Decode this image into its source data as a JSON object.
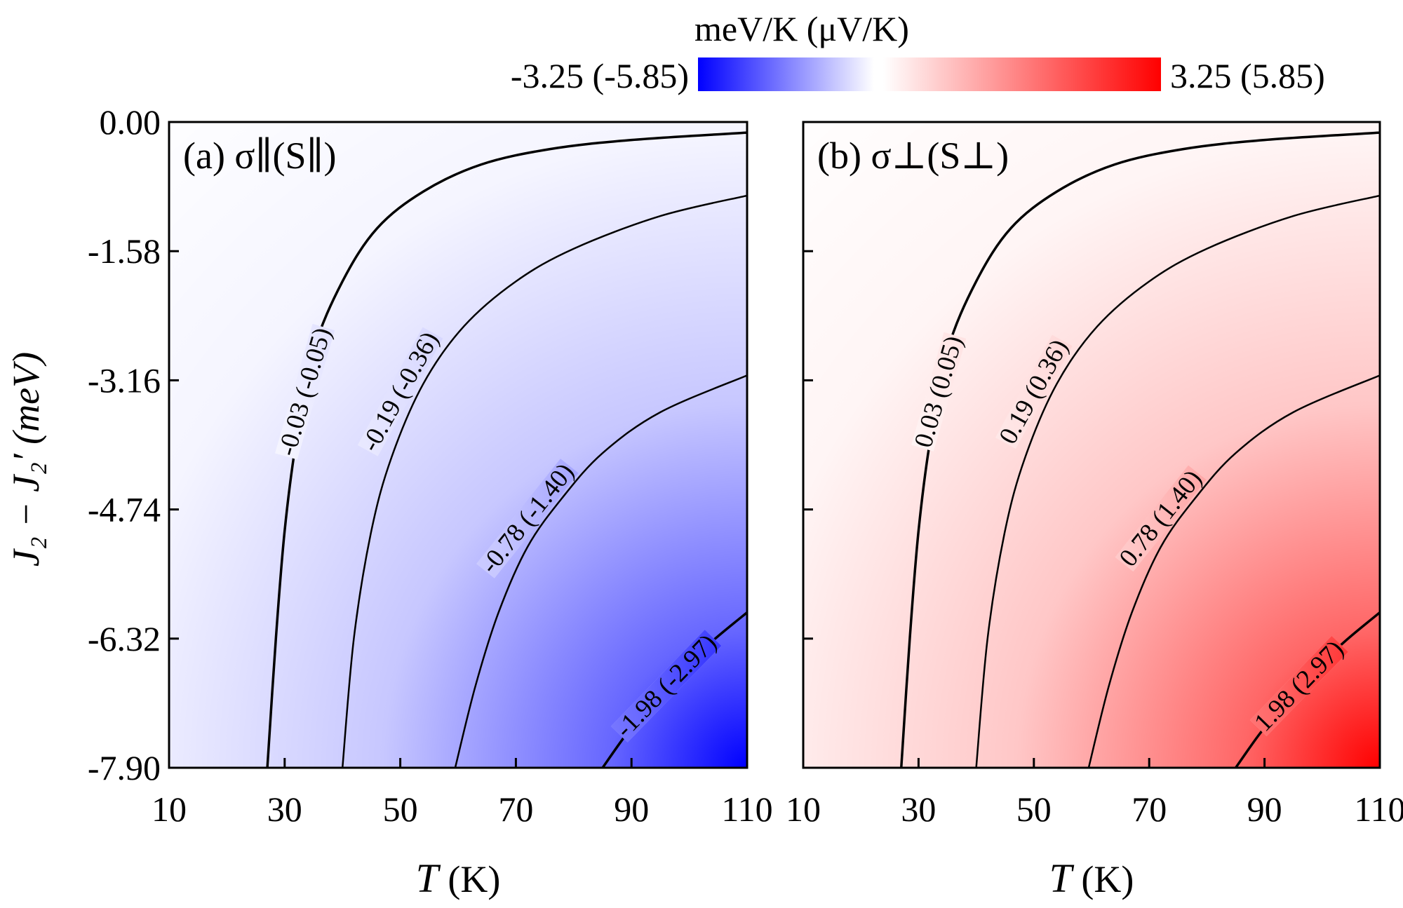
{
  "colorbar": {
    "title": "meV/K (μV/K)",
    "min_label": "-3.25 (-5.85)",
    "max_label": "3.25 (5.85)",
    "min_color": "#0000ff",
    "mid_color": "#ffffff",
    "max_color": "#ff0000"
  },
  "axes": {
    "xlabel_symbol": "T",
    "xlabel_unit": " (K)",
    "ylabel": "J₂ − J₂′ (meV)",
    "xticks": [
      "10",
      "30",
      "50",
      "70",
      "90",
      "110"
    ],
    "xtick_values": [
      10,
      30,
      50,
      70,
      90,
      110
    ],
    "yticks": [
      "0.00",
      "-1.58",
      "-3.16",
      "-4.74",
      "-6.32",
      "-7.90"
    ],
    "ytick_values": [
      0.0,
      -1.58,
      -3.16,
      -4.74,
      -6.32,
      -7.9
    ],
    "xlim": [
      10,
      110
    ],
    "ylim": [
      -7.9,
      0.0
    ]
  },
  "chart_data": [
    {
      "type": "heatmap",
      "panel_label": "(a) σ∥(S∥)",
      "colorscale": "white-to-blue",
      "value_range": [
        -3.25,
        0
      ],
      "contours": [
        {
          "label": "-0.03 (-0.05)",
          "level": -0.03,
          "points": [
            [
              27,
              -7.9
            ],
            [
              28.5,
              -6.3
            ],
            [
              30,
              -5.0
            ],
            [
              32,
              -3.9
            ],
            [
              35,
              -2.8
            ],
            [
              40,
              -1.95
            ],
            [
              46,
              -1.3
            ],
            [
              54,
              -0.85
            ],
            [
              64,
              -0.52
            ],
            [
              76,
              -0.33
            ],
            [
              90,
              -0.22
            ],
            [
              110,
              -0.13
            ]
          ]
        },
        {
          "label": "-0.19 (-0.36)",
          "level": -0.19,
          "points": [
            [
              40,
              -7.9
            ],
            [
              42,
              -6.3
            ],
            [
              45,
              -5.0
            ],
            [
              48.5,
              -4.1
            ],
            [
              54,
              -3.2
            ],
            [
              61,
              -2.5
            ],
            [
              70,
              -1.95
            ],
            [
              80,
              -1.55
            ],
            [
              95,
              -1.15
            ],
            [
              110,
              -0.9
            ]
          ]
        },
        {
          "label": "-0.78 (-1.40)",
          "level": -0.78,
          "points": [
            [
              59.5,
              -7.9
            ],
            [
              63,
              -6.9
            ],
            [
              67,
              -6.0
            ],
            [
              72,
              -5.2
            ],
            [
              78,
              -4.6
            ],
            [
              85,
              -4.05
            ],
            [
              95,
              -3.55
            ],
            [
              110,
              -3.1
            ]
          ]
        },
        {
          "label": "-1.98 (-2.97)",
          "level": -1.98,
          "points": [
            [
              85,
              -7.9
            ],
            [
              89,
              -7.5
            ],
            [
              93,
              -7.15
            ],
            [
              98,
              -6.75
            ],
            [
              104,
              -6.35
            ],
            [
              110,
              -6.0
            ]
          ]
        }
      ]
    },
    {
      "type": "heatmap",
      "panel_label": "(b) σ⊥(S⊥)",
      "colorscale": "white-to-red",
      "value_range": [
        0,
        3.25
      ],
      "contours": [
        {
          "label": "0.03 (0.05)",
          "level": 0.03,
          "points": [
            [
              27,
              -7.9
            ],
            [
              28.5,
              -6.3
            ],
            [
              30,
              -5.0
            ],
            [
              32,
              -3.9
            ],
            [
              35,
              -2.8
            ],
            [
              40,
              -1.95
            ],
            [
              46,
              -1.3
            ],
            [
              54,
              -0.85
            ],
            [
              64,
              -0.52
            ],
            [
              76,
              -0.33
            ],
            [
              90,
              -0.22
            ],
            [
              110,
              -0.13
            ]
          ]
        },
        {
          "label": "0.19 (0.36)",
          "level": 0.19,
          "points": [
            [
              40,
              -7.9
            ],
            [
              42,
              -6.3
            ],
            [
              45,
              -5.0
            ],
            [
              48.5,
              -4.1
            ],
            [
              54,
              -3.2
            ],
            [
              61,
              -2.5
            ],
            [
              70,
              -1.95
            ],
            [
              80,
              -1.55
            ],
            [
              95,
              -1.15
            ],
            [
              110,
              -0.9
            ]
          ]
        },
        {
          "label": "0.78 (1.40)",
          "level": 0.78,
          "points": [
            [
              59.5,
              -7.9
            ],
            [
              63,
              -6.9
            ],
            [
              67,
              -6.0
            ],
            [
              72,
              -5.2
            ],
            [
              78,
              -4.6
            ],
            [
              85,
              -4.05
            ],
            [
              95,
              -3.55
            ],
            [
              110,
              -3.1
            ]
          ]
        },
        {
          "label": "1.98 (2.97)",
          "level": 1.98,
          "points": [
            [
              85,
              -7.9
            ],
            [
              89,
              -7.5
            ],
            [
              93,
              -7.15
            ],
            [
              98,
              -6.75
            ],
            [
              104,
              -6.35
            ],
            [
              110,
              -6.0
            ]
          ]
        }
      ]
    }
  ]
}
